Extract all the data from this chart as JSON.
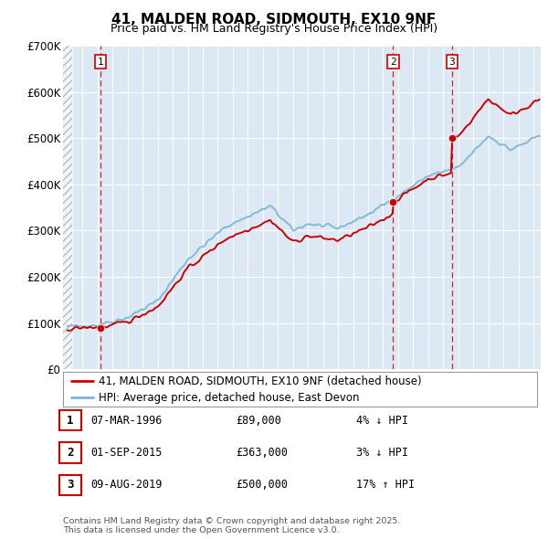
{
  "title": "41, MALDEN ROAD, SIDMOUTH, EX10 9NF",
  "subtitle": "Price paid vs. HM Land Registry's House Price Index (HPI)",
  "background_color": "#dce9f5",
  "ylim": [
    0,
    700000
  ],
  "yticks": [
    0,
    100000,
    200000,
    300000,
    400000,
    500000,
    600000,
    700000
  ],
  "ytick_labels": [
    "£0",
    "£100K",
    "£200K",
    "£300K",
    "£400K",
    "£500K",
    "£600K",
    "£700K"
  ],
  "xlim_start": 1993.7,
  "xlim_end": 2025.5,
  "hatch_end": 1994.3,
  "transactions": [
    {
      "year": 1996.18,
      "price": 89000,
      "label": "1"
    },
    {
      "year": 2015.67,
      "price": 363000,
      "label": "2"
    },
    {
      "year": 2019.59,
      "price": 500000,
      "label": "3"
    }
  ],
  "hpi_line_color": "#7ab8d9",
  "price_line_color": "#cc0000",
  "vline_color": "#cc0000",
  "legend_entries": [
    "41, MALDEN ROAD, SIDMOUTH, EX10 9NF (detached house)",
    "HPI: Average price, detached house, East Devon"
  ],
  "table_rows": [
    {
      "num": "1",
      "date": "07-MAR-1996",
      "price": "£89,000",
      "hpi": "4% ↓ HPI"
    },
    {
      "num": "2",
      "date": "01-SEP-2015",
      "price": "£363,000",
      "hpi": "3% ↓ HPI"
    },
    {
      "num": "3",
      "date": "09-AUG-2019",
      "price": "£500,000",
      "hpi": "17% ↑ HPI"
    }
  ],
  "footnote": "Contains HM Land Registry data © Crown copyright and database right 2025.\nThis data is licensed under the Open Government Licence v3.0."
}
